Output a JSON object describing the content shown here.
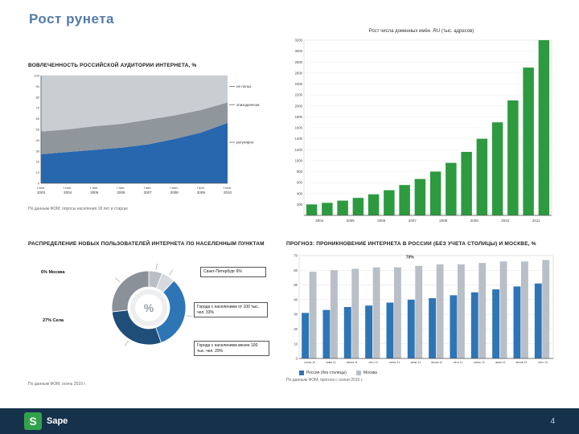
{
  "title": "Рост рунета",
  "panels": {
    "audience": {
      "heading": "ВОВЛЕЧЕННОСТЬ РОССИЙСКОЙ АУДИТОРИИ ИНТЕРНЕТА, %",
      "footnote": "По данным ФОМ; опросы населения 18 лет и старше"
    },
    "domains": {
      "title": "Рост числа доменных имён .RU (тыс. адресов)"
    },
    "distribution": {
      "heading": "РАСПРЕДЕЛЕНИЕ НОВЫХ ПОЛЬЗОВАТЕЛЕЙ ИНТЕРНЕТА ПО НАСЕЛЕННЫМ ПУНКТАМ",
      "labels": {
        "moscow": "6% Москва",
        "villages": "27% Села",
        "spb": "Санкт-Петербург 6%",
        "big_cities": "Города с населением от 100 тыс. чел. 33%",
        "small_cities": "Города с населением менее 100 тыс. чел. 29%"
      },
      "footnote": "По данным ФОМ, осень 2010 г."
    },
    "forecast": {
      "heading": "ПРОГНОЗ: ПРОНИКНОВЕНИЕ ИНТЕРНЕТА В РОССИИ (БЕЗ УЧЕТА СТОЛИЦЫ) И МОСКВЕ, %",
      "footnote": "По данным ФОМ; прогноз с осени 2010 г."
    }
  },
  "footer": {
    "logo_glyph": "S",
    "logo_text": "Sape",
    "page_number": "4"
  },
  "colors": {
    "accent_blue": "#2e75b6",
    "dark_blue": "#1f4e79",
    "green": "#2d9a3f",
    "gray": "#b9bfc6",
    "footer_bg": "#16324b",
    "title_blue": "#527ca6"
  },
  "chart_data": [
    {
      "type": "area",
      "title": "ВОВЛЕЧЕННОСТЬ РОССИЙСКОЙ АУДИТОРИИ ИНТЕРНЕТА, %",
      "categories": [
        "2003",
        "2004",
        "2005",
        "2006",
        "2007",
        "2008",
        "2009",
        "2010"
      ],
      "category_prefix": "I пол.",
      "ylim": [
        0,
        100
      ],
      "ytick": 10,
      "series": [
        {
          "name": "регулярно",
          "color": "#2767ae",
          "values": [
            27,
            29,
            31,
            33,
            36,
            41,
            47,
            56
          ]
        },
        {
          "name": "эпизодически",
          "color": "#8f969c",
          "values": [
            21,
            21,
            22,
            22,
            23,
            22,
            21,
            19
          ]
        },
        {
          "name": "не польз.",
          "color": "#c9ced3",
          "values": [
            52,
            50,
            47,
            45,
            41,
            37,
            32,
            25
          ]
        }
      ],
      "legend": [
        {
          "label": "не польз.",
          "fy": 0.1
        },
        {
          "label": "эпизодически",
          "fy": 0.27
        },
        {
          "label": "регулярно",
          "fy": 0.62
        }
      ]
    },
    {
      "type": "bar",
      "title": "Рост числа доменных имён .RU (тыс. адресов)",
      "values": [
        200,
        230,
        270,
        320,
        385,
        460,
        555,
        665,
        800,
        960,
        1160,
        1400,
        1700,
        2100,
        2700,
        3200
      ],
      "year_labels": [
        "2004",
        "2005",
        "2006",
        "2007",
        "2008",
        "2009",
        "2010",
        "2011"
      ],
      "ylim": [
        0,
        3200
      ],
      "ytick": 200,
      "color": "#2d9a3f"
    },
    {
      "type": "pie",
      "title": "РАСПРЕДЕЛЕНИЕ НОВЫХ ПОЛЬЗОВАТЕЛЕЙ ИНТЕРНЕТА ПО НАСЕЛЕННЫМ ПУНКТАМ",
      "center_label": "%",
      "slices": [
        {
          "label": "Москва",
          "value": 6,
          "color": "#b9bfc6"
        },
        {
          "label": "Санкт-Петербург",
          "value": 6,
          "color": "#d6dade"
        },
        {
          "label": "Города с населением от 100 тыс. чел.",
          "value": 33,
          "color": "#2e75b6"
        },
        {
          "label": "Города с населением менее 100 тыс. чел.",
          "value": 29,
          "color": "#1f4e79"
        },
        {
          "label": "Села",
          "value": 27,
          "color": "#8b9199"
        }
      ]
    },
    {
      "type": "bar",
      "grouped": true,
      "title": "ПРОГНОЗ: ПРОНИКНОВЕНИЕ ИНТЕРНЕТА В РОССИИ (БЕЗ УЧЕТА СТОЛИЦЫ) И МОСКВЕ, %",
      "categories": [
        "осень 10",
        "зима 11",
        "весна 11",
        "лето 11",
        "осень 11",
        "зима 12",
        "весна 12",
        "лето 12",
        "осень 12",
        "зима 13",
        "весна 13",
        "лето 13"
      ],
      "ylim": [
        0,
        70
      ],
      "ytick": 10,
      "series": [
        {
          "name": "Россия (без столицы)",
          "color": "#2e75b6",
          "values": [
            31,
            33,
            35,
            36,
            38,
            40,
            41,
            43,
            45,
            47,
            49,
            51
          ]
        },
        {
          "name": "Москва",
          "color": "#b9bfc6",
          "values": [
            59,
            60,
            61,
            62,
            62,
            63,
            64,
            64,
            65,
            66,
            66,
            67
          ]
        }
      ],
      "annotation": {
        "text": "70%",
        "fx": 0.42,
        "value": 68
      }
    }
  ]
}
